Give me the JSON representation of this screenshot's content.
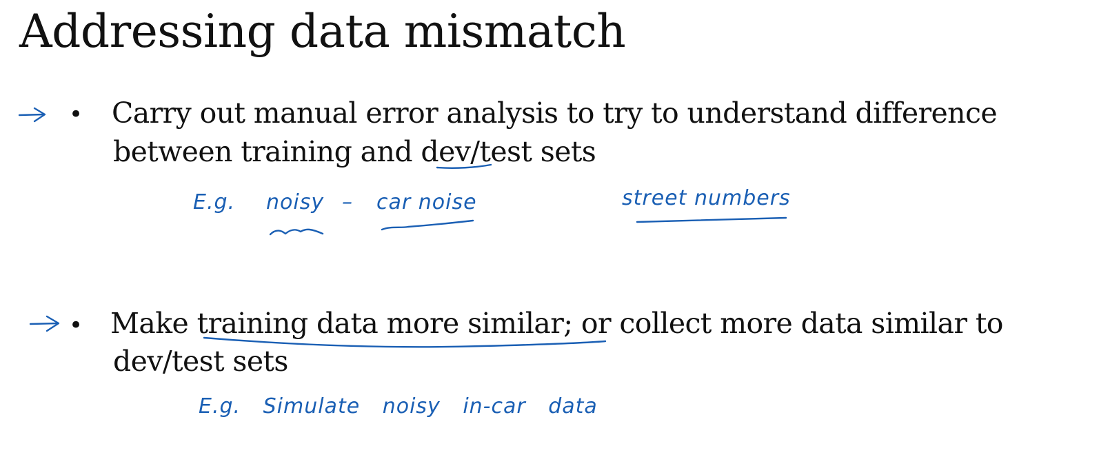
{
  "slide": {
    "title": "Addressing data mismatch",
    "bullets": [
      {
        "symbol": "•",
        "line1": "Carry out manual error analysis to try to understand difference",
        "line2_part1": "between training and ",
        "line2_dev": "dev",
        "line2_part2": "/test sets"
      },
      {
        "symbol": "•",
        "line1_part1": "Make ",
        "line1_underlined": "training data more similar;",
        "line1_part2": " or collect more data similar to",
        "line2": "dev/test sets"
      }
    ],
    "annotations": {
      "example1_eg": "E.g.",
      "example1_noisy": "noisy",
      "example1_dash": "–",
      "example1_car_noise": "car noise",
      "example1_street_numbers": "street numbers",
      "example2": "E.g. Simulate noisy in-car data"
    },
    "colors": {
      "text": "#111111",
      "ink": "#1a5fb4",
      "background": "#ffffff"
    }
  }
}
